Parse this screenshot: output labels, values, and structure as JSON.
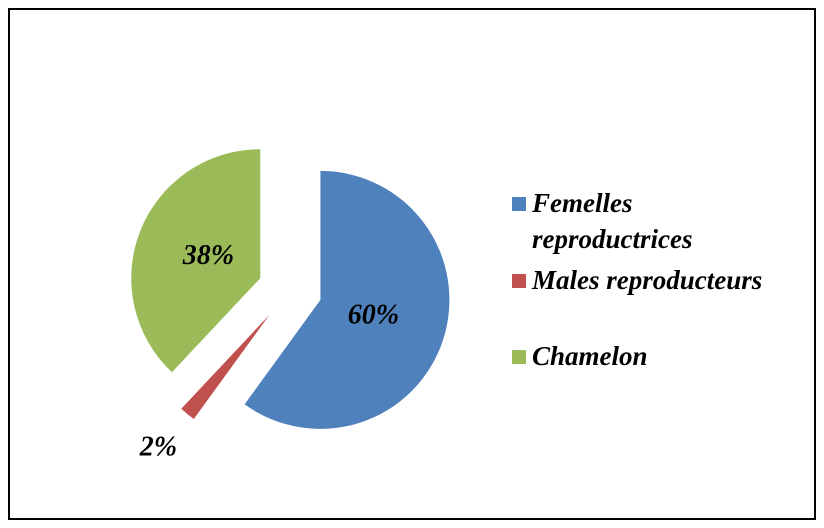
{
  "chart_data": {
    "type": "pie",
    "categories": [
      "Femelles reproductrices",
      "Males reproducteurs",
      "Chamelon"
    ],
    "values": [
      60,
      2,
      38
    ],
    "value_labels": [
      "60%",
      "2%",
      "38%"
    ],
    "colors": [
      "#4f81bd",
      "#c0504d",
      "#9bbb59"
    ],
    "legend": "right"
  }
}
